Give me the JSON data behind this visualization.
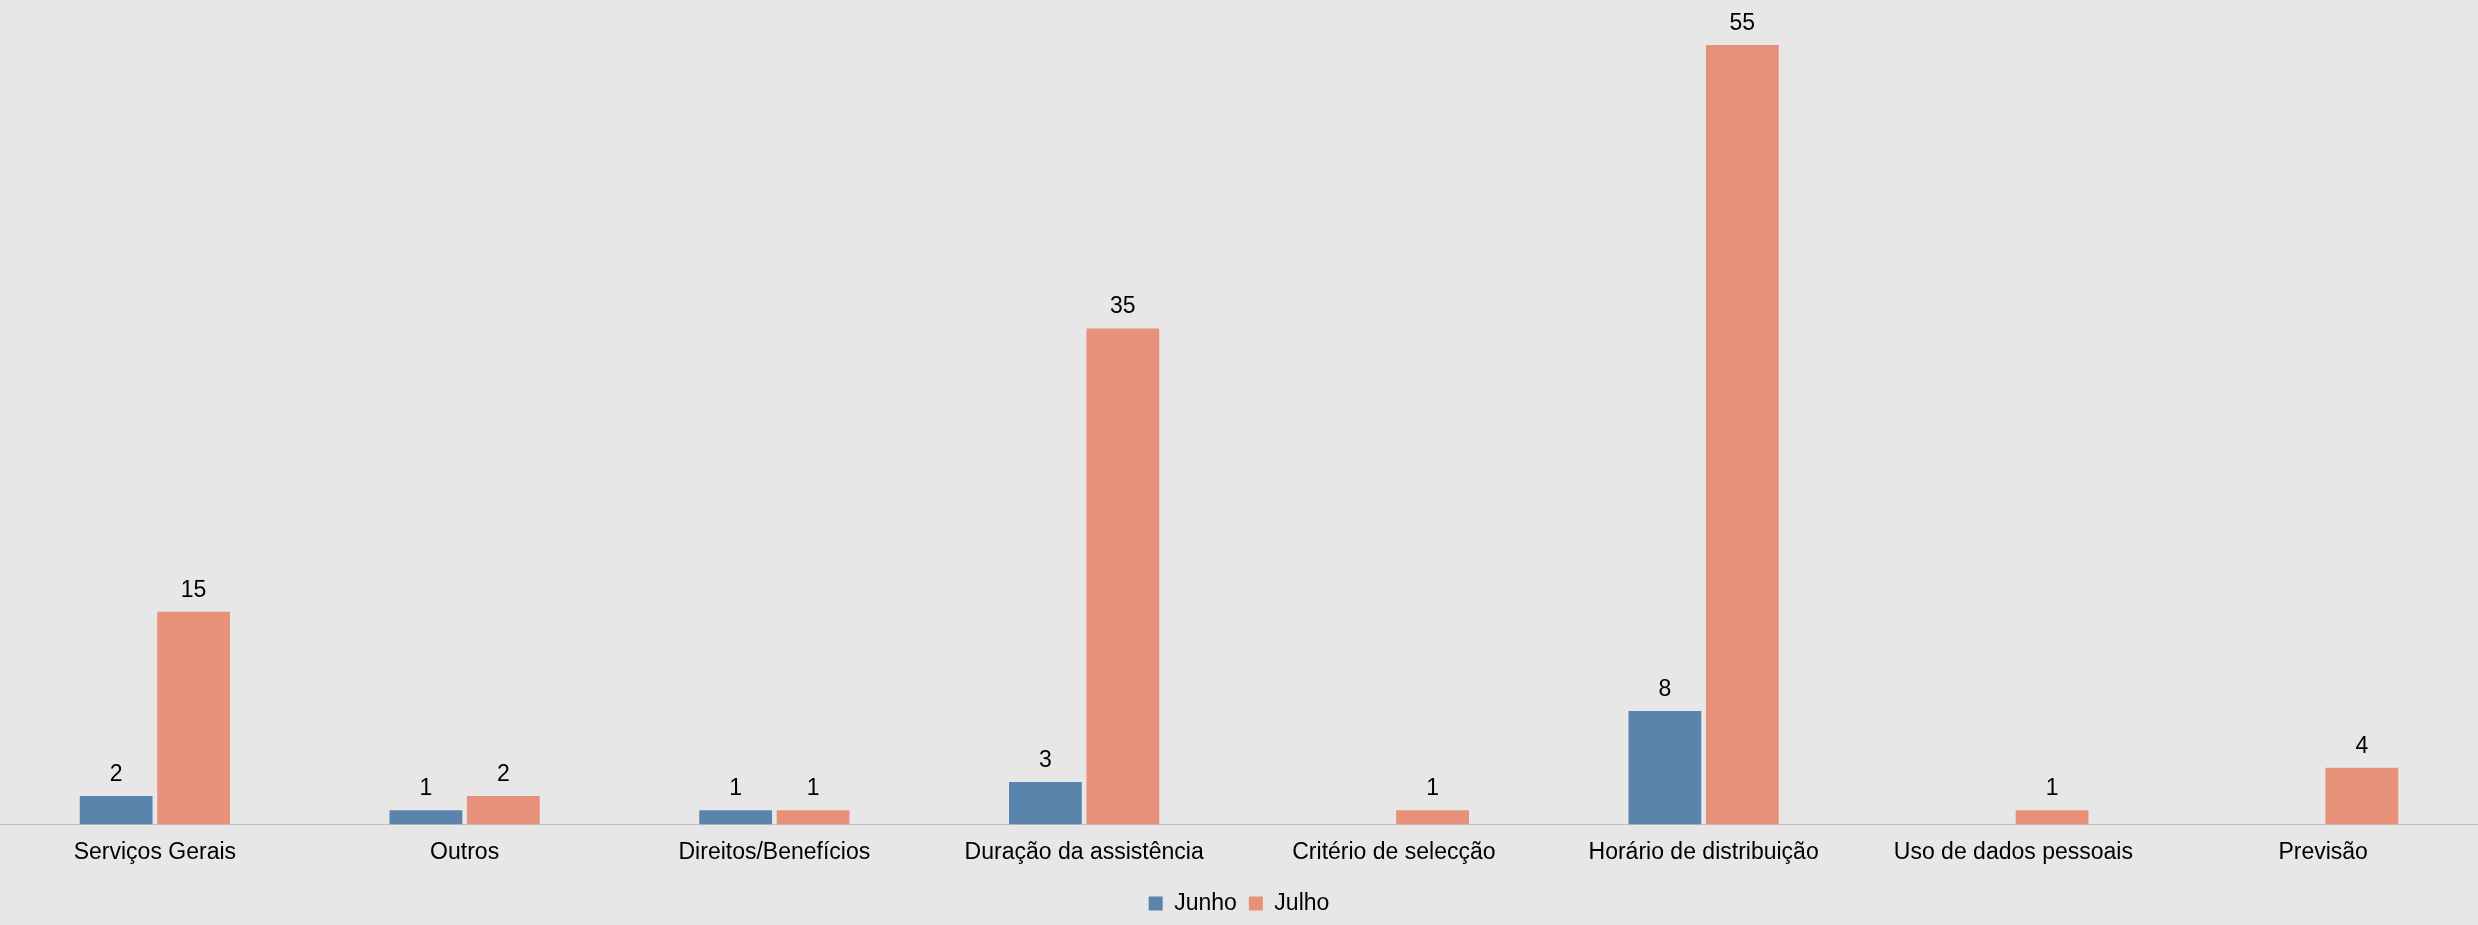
{
  "chart_data": {
    "type": "bar",
    "categories": [
      "Serviços Gerais",
      "Outros",
      "Direitos/Benefícios",
      "Duração da assistência",
      "Critério de selecção",
      "Horário de distribuição",
      "Uso de dados pessoais",
      "Previsão"
    ],
    "series": [
      {
        "name": "Junho",
        "color": "#5b84ad",
        "values": [
          2,
          1,
          1,
          3,
          null,
          8,
          null,
          null
        ]
      },
      {
        "name": "Julho",
        "color": "#e8917a",
        "values": [
          15,
          2,
          1,
          35,
          1,
          55,
          1,
          4
        ]
      }
    ],
    "data_labels": true,
    "grid": false,
    "legend": "bottom"
  }
}
